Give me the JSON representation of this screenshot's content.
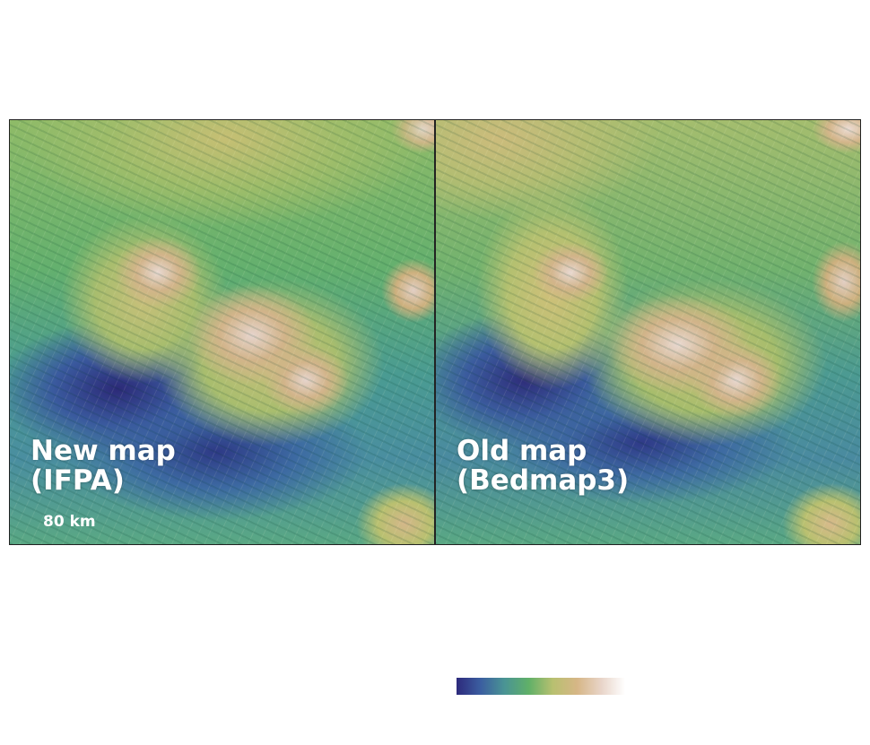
{
  "panels": [
    {
      "title_line1": "New map",
      "title_line2": "(IFPA)",
      "scale_bar": "80 km"
    },
    {
      "title_line1": "Old map",
      "title_line2": "(Bedmap3)"
    }
  ],
  "colorbar": {
    "colors": [
      "#2d2a7c",
      "#3b5ea0",
      "#4a9494",
      "#60b068",
      "#b8c070",
      "#d6b686",
      "#e8d4c8",
      "#ffffff"
    ]
  }
}
